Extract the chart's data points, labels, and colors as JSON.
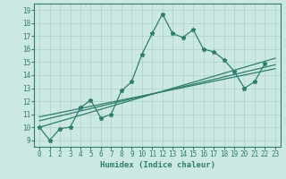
{
  "xlabel": "Humidex (Indice chaleur)",
  "xlim": [
    -0.5,
    23.5
  ],
  "ylim": [
    8.5,
    19.5
  ],
  "xticks": [
    0,
    1,
    2,
    3,
    4,
    5,
    6,
    7,
    8,
    9,
    10,
    11,
    12,
    13,
    14,
    15,
    16,
    17,
    18,
    19,
    20,
    21,
    22,
    23
  ],
  "yticks": [
    9,
    10,
    11,
    12,
    13,
    14,
    15,
    16,
    17,
    18,
    19
  ],
  "bg_color": "#cce8e2",
  "line_color": "#2e7d6e",
  "grid_color": "#b0d4cc",
  "jagged_series": [
    10.0,
    9.0,
    9.9,
    10.0,
    11.5,
    12.1,
    10.7,
    11.0,
    12.8,
    13.5,
    15.6,
    17.2,
    18.7,
    17.2,
    16.9,
    17.5,
    16.0,
    15.8,
    15.2,
    14.3,
    13.0,
    13.5,
    14.9
  ],
  "jagged_x": [
    0,
    1,
    2,
    3,
    4,
    5,
    6,
    7,
    8,
    9,
    10,
    11,
    12,
    13,
    14,
    15,
    16,
    17,
    18,
    19,
    20,
    21,
    22
  ],
  "trend1_x": [
    0,
    23
  ],
  "trend1_y": [
    10.0,
    15.3
  ],
  "trend2_x": [
    0,
    23
  ],
  "trend2_y": [
    10.5,
    14.8
  ],
  "trend3_x": [
    0,
    23
  ],
  "trend3_y": [
    10.8,
    14.5
  ],
  "marker": "*",
  "markersize": 3.5,
  "linewidth": 0.9
}
